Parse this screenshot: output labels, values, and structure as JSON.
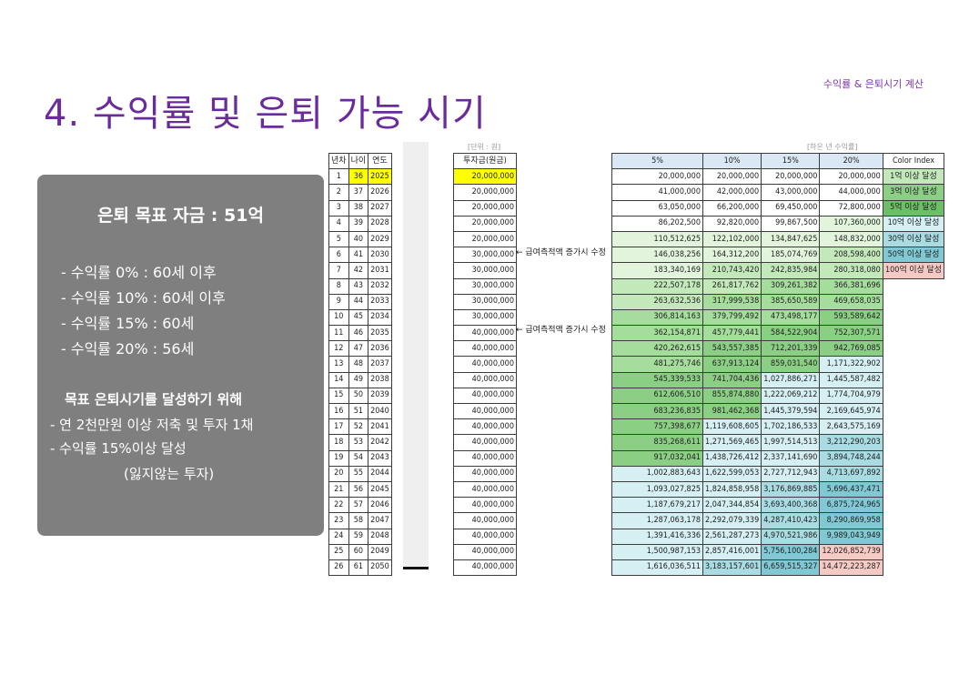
{
  "header": {
    "subtitle": "수익률 & 은퇴시기 계산",
    "title": "4. 수익률 및 은퇴 가능 시기"
  },
  "summary": {
    "goal": "은퇴 목표 자금 : 51억",
    "rates": [
      "- 수익률 0% : 60세 이후",
      "- 수익률 10% : 60세 이후",
      "- 수익률 15% : 60세",
      "- 수익률 20% : 56세"
    ],
    "actions_header": "목표 은퇴시기를 달성하기 위해",
    "actions": [
      "- 연 2천만원 이상 저축 및 투자 1채",
      "- 수익률 15%이상 달성"
    ],
    "note": "(잃지않는 투자)"
  },
  "table1": {
    "headers": [
      "년차",
      "나이",
      "연도"
    ],
    "rows": [
      [
        "1",
        "36",
        "2025"
      ],
      [
        "2",
        "37",
        "2026"
      ],
      [
        "3",
        "38",
        "2027"
      ],
      [
        "4",
        "39",
        "2028"
      ],
      [
        "5",
        "40",
        "2029"
      ],
      [
        "6",
        "41",
        "2030"
      ],
      [
        "7",
        "42",
        "2031"
      ],
      [
        "8",
        "43",
        "2032"
      ],
      [
        "9",
        "44",
        "2033"
      ],
      [
        "10",
        "45",
        "2034"
      ],
      [
        "11",
        "46",
        "2035"
      ],
      [
        "12",
        "47",
        "2036"
      ],
      [
        "13",
        "48",
        "2037"
      ],
      [
        "14",
        "49",
        "2038"
      ],
      [
        "15",
        "50",
        "2039"
      ],
      [
        "16",
        "51",
        "2040"
      ],
      [
        "17",
        "52",
        "2041"
      ],
      [
        "18",
        "53",
        "2042"
      ],
      [
        "19",
        "54",
        "2043"
      ],
      [
        "20",
        "55",
        "2044"
      ],
      [
        "21",
        "56",
        "2045"
      ],
      [
        "22",
        "57",
        "2046"
      ],
      [
        "23",
        "58",
        "2047"
      ],
      [
        "24",
        "59",
        "2048"
      ],
      [
        "25",
        "60",
        "2049"
      ],
      [
        "26",
        "61",
        "2050"
      ]
    ]
  },
  "table2": {
    "unit": "[단위 : 원]",
    "header": "투자금(원금)",
    "values": [
      "20,000,000",
      "20,000,000",
      "20,000,000",
      "20,000,000",
      "20,000,000",
      "30,000,000",
      "30,000,000",
      "30,000,000",
      "30,000,000",
      "30,000,000",
      "40,000,000",
      "40,000,000",
      "40,000,000",
      "40,000,000",
      "40,000,000",
      "40,000,000",
      "40,000,000",
      "40,000,000",
      "40,000,000",
      "40,000,000",
      "40,000,000",
      "40,000,000",
      "40,000,000",
      "40,000,000",
      "40,000,000",
      "40,000,000"
    ],
    "annotation_1": "← 급여측적액 증가시 수정",
    "annotation_2": "← 급여측적액 증가시 수정"
  },
  "table3": {
    "unit": "[하은 년 수익률]",
    "headers": [
      "5%",
      "10%",
      "15%",
      "20%"
    ],
    "rows": [
      [
        "20,000,000",
        "20,000,000",
        "20,000,000",
        "20,000,000"
      ],
      [
        "41,000,000",
        "42,000,000",
        "43,000,000",
        "44,000,000"
      ],
      [
        "63,050,000",
        "66,200,000",
        "69,450,000",
        "72,800,000"
      ],
      [
        "86,202,500",
        "92,820,000",
        "99,867,500",
        "107,360,000"
      ],
      [
        "110,512,625",
        "122,102,000",
        "134,847,625",
        "148,832,000"
      ],
      [
        "146,038,256",
        "164,312,200",
        "185,074,769",
        "208,598,400"
      ],
      [
        "183,340,169",
        "210,743,420",
        "242,835,984",
        "280,318,080"
      ],
      [
        "222,507,178",
        "261,817,762",
        "309,261,382",
        "366,381,696"
      ],
      [
        "263,632,536",
        "317,999,538",
        "385,650,589",
        "469,658,035"
      ],
      [
        "306,814,163",
        "379,799,492",
        "473,498,177",
        "593,589,642"
      ],
      [
        "362,154,871",
        "457,779,441",
        "584,522,904",
        "752,307,571"
      ],
      [
        "420,262,615",
        "543,557,385",
        "712,201,339",
        "942,769,085"
      ],
      [
        "481,275,746",
        "637,913,124",
        "859,031,540",
        "1,171,322,902"
      ],
      [
        "545,339,533",
        "741,704,436",
        "1,027,886,271",
        "1,445,587,482"
      ],
      [
        "612,606,510",
        "855,874,880",
        "1,222,069,212",
        "1,774,704,979"
      ],
      [
        "683,236,835",
        "981,462,368",
        "1,445,379,594",
        "2,169,645,974"
      ],
      [
        "757,398,677",
        "1,119,608,605",
        "1,702,186,533",
        "2,643,575,169"
      ],
      [
        "835,268,611",
        "1,271,569,465",
        "1,997,514,513",
        "3,212,290,203"
      ],
      [
        "917,032,041",
        "1,438,726,412",
        "2,337,141,690",
        "3,894,748,244"
      ],
      [
        "1,002,883,643",
        "1,622,599,053",
        "2,727,712,943",
        "4,713,697,892"
      ],
      [
        "1,093,027,825",
        "1,824,858,958",
        "3,176,869,885",
        "5,696,437,471"
      ],
      [
        "1,187,679,217",
        "2,047,344,854",
        "3,693,400,368",
        "6,875,724,965"
      ],
      [
        "1,287,063,178",
        "2,292,079,339",
        "4,287,410,423",
        "8,290,869,958"
      ],
      [
        "1,391,416,336",
        "2,561,287,273",
        "4,970,521,986",
        "9,989,043,949"
      ],
      [
        "1,500,987,153",
        "2,857,416,001",
        "5,756,100,284",
        "12,026,852,739"
      ],
      [
        "1,616,036,511",
        "3,183,157,601",
        "6,659,515,327",
        "14,472,223,287"
      ]
    ]
  },
  "legend": {
    "header": "Color Index",
    "items": [
      "1억 이상 달성",
      "3억 이상 달성",
      "5억 이상 달성",
      "10억 이상 달성",
      "30억 이상 달성",
      "50억 이상 달성",
      "100억 이상 달성"
    ],
    "colors": [
      "#c3e9bb",
      "#8bcf85",
      "#6cbf66",
      "#d5eff2",
      "#a8dbe2",
      "#80c8d3",
      "#f5c9c4"
    ]
  }
}
